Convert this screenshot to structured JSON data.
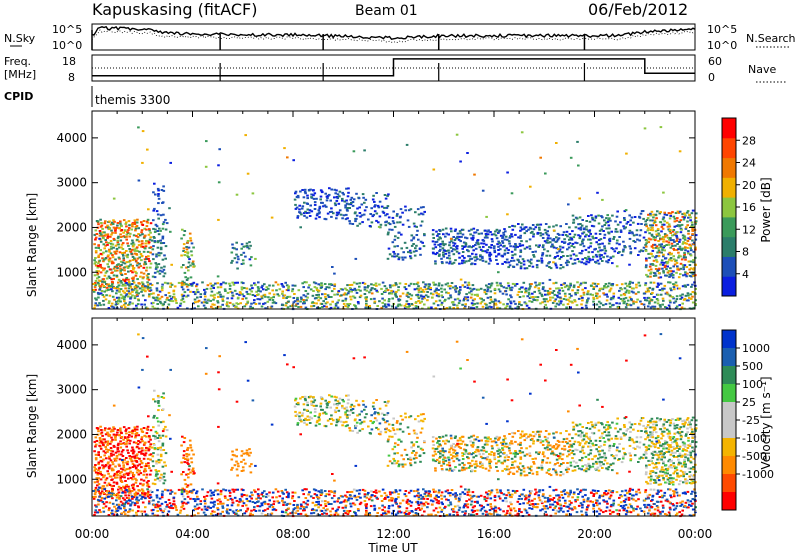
{
  "header": {
    "station": "Kapuskasing (fitACF)",
    "beam": "Beam 01",
    "date": "06/Feb/2012"
  },
  "panels": {
    "nsky": {
      "left_label": "N.Sky",
      "right_label": "N.Search",
      "left_ticks": [
        "10^5",
        "10^0"
      ],
      "right_ticks": [
        "10^5",
        "10^0"
      ]
    },
    "freq": {
      "left_label_1": "Freq.",
      "left_label_2": "[MHz]",
      "right_label": "Nave",
      "left_ticks": [
        "18",
        "8"
      ],
      "right_ticks": [
        "60",
        "0"
      ]
    },
    "cpid": {
      "label": "CPID",
      "program": "themis 3300"
    }
  },
  "colors": {
    "power": [
      "#0b1fe0",
      "#1d4fb8",
      "#2b7d6a",
      "#3a9a5a",
      "#8cc63f",
      "#f0b000",
      "#f07800",
      "#ff4500",
      "#ff0000"
    ],
    "velocity": [
      "#ff0000",
      "#ff4a00",
      "#ff8a00",
      "#f4b400",
      "#c8c8c8",
      "#c8c8c8",
      "#44c842",
      "#2e8b57",
      "#1b5fb0",
      "#0033cc"
    ]
  },
  "chart_data": [
    {
      "type": "heatmap",
      "name": "power",
      "ylabel": "Slant Range [km]",
      "ylim": [
        180,
        4600
      ],
      "yticks": [
        "1000",
        "2000",
        "3000",
        "4000"
      ],
      "xlim": [
        0,
        24
      ],
      "colorbar": {
        "label": "Power [dB]",
        "ticks": [
          "4",
          "8",
          "12",
          "16",
          "20",
          "24",
          "28"
        ],
        "range": [
          0,
          32
        ]
      }
    },
    {
      "type": "heatmap",
      "name": "velocity",
      "ylabel": "Slant Range [km]",
      "ylim": [
        180,
        4600
      ],
      "yticks": [
        "1000",
        "2000",
        "3000",
        "4000"
      ],
      "xlim": [
        0,
        24
      ],
      "xticks": [
        "00:00",
        "04:00",
        "08:00",
        "12:00",
        "16:00",
        "20:00",
        "00:00"
      ],
      "xlabel": "Time UT",
      "colorbar": {
        "label": "Velocity [m s⁻¹]",
        "ticks": [
          "1000",
          "500",
          "100",
          "25",
          "-25",
          "-100",
          "-500",
          "-1000"
        ]
      }
    }
  ],
  "scatter_regions": [
    {
      "t0": 0.05,
      "t1": 2.3,
      "r0": 600,
      "r1": 2200,
      "density": 0.75,
      "p": [
        8,
        30
      ],
      "v": [
        -900,
        -100
      ]
    },
    {
      "t0": 2.3,
      "t1": 2.9,
      "r0": 900,
      "r1": 2000,
      "density": 0.55,
      "p": [
        4,
        12
      ],
      "v": [
        -80,
        80
      ]
    },
    {
      "t0": 2.3,
      "t1": 3.0,
      "r0": 2000,
      "r1": 3000,
      "density": 0.3,
      "p": [
        2,
        8
      ],
      "v": [
        -60,
        60
      ]
    },
    {
      "t0": 3.5,
      "t1": 4.0,
      "r0": 700,
      "r1": 2000,
      "density": 0.45,
      "p": [
        6,
        24
      ],
      "v": [
        -600,
        -100
      ]
    },
    {
      "t0": 5.5,
      "t1": 6.3,
      "r0": 1100,
      "r1": 1700,
      "density": 0.45,
      "p": [
        3,
        12
      ],
      "v": [
        -500,
        -100
      ]
    },
    {
      "t0": 8.0,
      "t1": 10.2,
      "r0": 2200,
      "r1": 2900,
      "density": 0.5,
      "p": [
        1,
        8
      ],
      "v": [
        -80,
        80
      ]
    },
    {
      "t0": 10.2,
      "t1": 11.8,
      "r0": 2000,
      "r1": 2800,
      "density": 0.35,
      "p": [
        1,
        10
      ],
      "v": [
        -150,
        150
      ]
    },
    {
      "t0": 11.7,
      "t1": 13.2,
      "r0": 1300,
      "r1": 2500,
      "density": 0.3,
      "p": [
        2,
        10
      ],
      "v": [
        -150,
        80
      ]
    },
    {
      "t0": 13.5,
      "t1": 16.5,
      "r0": 1200,
      "r1": 2000,
      "density": 0.6,
      "p": [
        1,
        10
      ],
      "v": [
        -200,
        120
      ]
    },
    {
      "t0": 16.5,
      "t1": 19.0,
      "r0": 1100,
      "r1": 2100,
      "density": 0.45,
      "p": [
        1,
        10
      ],
      "v": [
        -300,
        100
      ]
    },
    {
      "t0": 19.0,
      "t1": 20.8,
      "r0": 1200,
      "r1": 2300,
      "density": 0.5,
      "p": [
        1,
        12
      ],
      "v": [
        -100,
        100
      ]
    },
    {
      "t0": 20.8,
      "t1": 22.0,
      "r0": 1400,
      "r1": 2400,
      "density": 0.35,
      "p": [
        2,
        10
      ],
      "v": [
        -100,
        100
      ]
    },
    {
      "t0": 22.0,
      "t1": 24.0,
      "r0": 900,
      "r1": 2400,
      "density": 0.7,
      "p": [
        2,
        28
      ],
      "v": [
        -100,
        100
      ]
    },
    {
      "t0": 0.0,
      "t1": 24.0,
      "r0": 200,
      "r1": 800,
      "density": 0.55,
      "p": [
        2,
        22
      ],
      "v": [
        -1000,
        1000
      ]
    },
    {
      "t0": 0.0,
      "t1": 24.0,
      "r0": 800,
      "r1": 4500,
      "density": 0.006,
      "p": [
        2,
        24
      ],
      "v": [
        -1000,
        1000
      ]
    }
  ],
  "nsky_profile": [
    {
      "t": 0.0,
      "v": 0.55
    },
    {
      "t": 0.3,
      "v": 0.85
    },
    {
      "t": 2.3,
      "v": 0.78
    },
    {
      "t": 2.8,
      "v": 0.65
    },
    {
      "t": 5.0,
      "v": 0.6
    },
    {
      "t": 8.0,
      "v": 0.58
    },
    {
      "t": 11.0,
      "v": 0.5
    },
    {
      "t": 12.0,
      "v": 0.45
    },
    {
      "t": 14.0,
      "v": 0.55
    },
    {
      "t": 17.0,
      "v": 0.55
    },
    {
      "t": 21.0,
      "v": 0.55
    },
    {
      "t": 22.0,
      "v": 0.7
    },
    {
      "t": 24.0,
      "v": 0.82
    }
  ],
  "freq_steps": [
    {
      "t0": 0.0,
      "t1": 12.0,
      "v": 0.2
    },
    {
      "t0": 12.0,
      "t1": 22.0,
      "v": 0.85
    },
    {
      "t0": 22.0,
      "t1": 24.0,
      "v": 0.3
    }
  ],
  "freq_spikes": [
    5.1,
    9.2,
    13.8,
    19.6
  ],
  "nsky_spikes": [
    5.1,
    9.2,
    13.8,
    19.6
  ]
}
